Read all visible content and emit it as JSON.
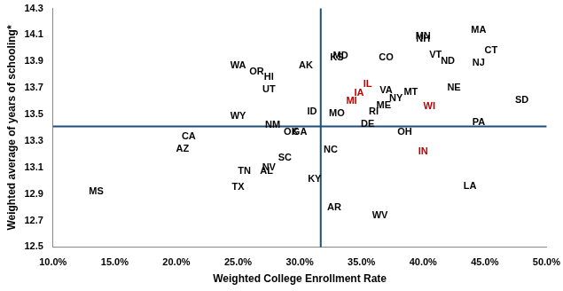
{
  "chart_data": {
    "type": "scatter",
    "x_label": "Weighted College Enrollment Rate",
    "y_label": "Weighted average of years of schooling*",
    "x": [
      13.5,
      21,
      20.5,
      25,
      25.5,
      27.3,
      27.5,
      28.8,
      25,
      26.5,
      27.5,
      27.5,
      30.5,
      25,
      27.8,
      29.3,
      30,
      31,
      33,
      31.2,
      32.8,
      32.5,
      35.5,
      33.3,
      33,
      37,
      35.5,
      34.8,
      34.2,
      37,
      37.8,
      36.8,
      36,
      39,
      40.5,
      38.5,
      40,
      36.5,
      43.8,
      44.5,
      48,
      42.5,
      40,
      40,
      44.5,
      45.5,
      41,
      42,
      44.5
    ],
    "values": [
      12.92,
      13.33,
      13.24,
      12.95,
      13.07,
      13.07,
      13.1,
      13.17,
      13.87,
      13.82,
      13.78,
      13.69,
      13.87,
      13.49,
      13.42,
      13.37,
      13.37,
      13.52,
      13.51,
      13.01,
      12.8,
      13.23,
      13.43,
      13.94,
      13.93,
      13.93,
      13.73,
      13.66,
      13.6,
      13.68,
      13.62,
      13.57,
      13.52,
      13.67,
      13.56,
      13.37,
      13.22,
      12.74,
      12.96,
      13.44,
      13.61,
      13.7,
      14.09,
      14.07,
      14.14,
      13.98,
      13.95,
      13.9,
      13.89
    ],
    "point_labels": [
      "MS",
      "CA",
      "AZ",
      "TX",
      "TN",
      "AL",
      "NV",
      "SC",
      "WA",
      "OR",
      "HI",
      "UT",
      "AK",
      "WY",
      "NM",
      "OK",
      "GA",
      "ID",
      "MO",
      "KY",
      "AR",
      "NC",
      "DE",
      "MD",
      "KS",
      "CO",
      "IL",
      "IA",
      "MI",
      "VA",
      "NY",
      "ME",
      "RI",
      "MT",
      "WI",
      "OH",
      "IN",
      "WV",
      "LA",
      "PA",
      "SD",
      "NE",
      "MN",
      "NH",
      "MA",
      "CT",
      "VT",
      "ND",
      "NJ"
    ],
    "colors": [
      "#000000",
      "#000000",
      "#000000",
      "#000000",
      "#000000",
      "#000000",
      "#000000",
      "#000000",
      "#000000",
      "#000000",
      "#000000",
      "#000000",
      "#000000",
      "#000000",
      "#000000",
      "#000000",
      "#000000",
      "#000000",
      "#000000",
      "#000000",
      "#000000",
      "#000000",
      "#000000",
      "#000000",
      "#000000",
      "#000000",
      "#c00000",
      "#c00000",
      "#c00000",
      "#000000",
      "#000000",
      "#000000",
      "#000000",
      "#000000",
      "#c00000",
      "#000000",
      "#c00000",
      "#000000",
      "#000000",
      "#000000",
      "#000000",
      "#000000",
      "#000000",
      "#000000",
      "#000000",
      "#000000",
      "#000000",
      "#000000",
      "#000000"
    ],
    "marker": "none",
    "reference_lines": [
      {
        "axis": "x",
        "value": 31.7,
        "color": "#1f4e79"
      },
      {
        "axis": "y",
        "value": 13.41,
        "color": "#1f4e79"
      }
    ],
    "xlim": [
      10,
      50
    ],
    "xticks": [
      {
        "value": 10,
        "label": "10.0%"
      },
      {
        "value": 15,
        "label": "15.0%"
      },
      {
        "value": 20,
        "label": "20.0%"
      },
      {
        "value": 25,
        "label": "25.0%"
      },
      {
        "value": 30,
        "label": "30.0%"
      },
      {
        "value": 35,
        "label": "35.0%"
      },
      {
        "value": 40,
        "label": "40.0%"
      },
      {
        "value": 45,
        "label": "45.0%"
      },
      {
        "value": 50,
        "label": "50.0%"
      }
    ],
    "ylim": [
      12.5,
      14.3
    ],
    "yticks": [
      12.5,
      12.7,
      12.9,
      13.1,
      13.3,
      13.5,
      13.7,
      13.9,
      14.1,
      14.3
    ],
    "grid": false
  }
}
